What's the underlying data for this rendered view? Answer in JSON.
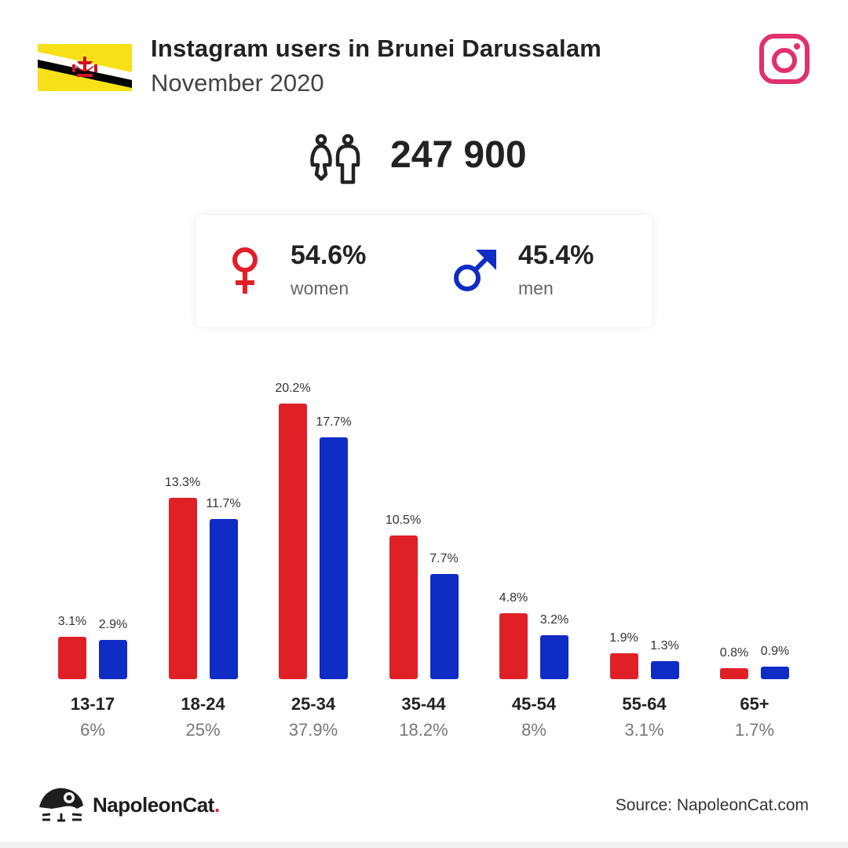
{
  "header": {
    "title": "Instagram users in Brunei Darussalam",
    "subtitle": "November 2020",
    "flag_icon": "brunei-flag",
    "platform_icon": "instagram-icon",
    "platform_color": "#e1306c"
  },
  "total": {
    "icon": "people-icon",
    "value": "247 900"
  },
  "gender": {
    "women": {
      "icon": "female-symbol-icon",
      "percent": "54.6%",
      "label": "women",
      "color": "#e02027"
    },
    "men": {
      "icon": "male-symbol-icon",
      "percent": "45.4%",
      "label": "men",
      "color": "#0f2cc4"
    }
  },
  "chart_data": {
    "type": "bar",
    "title": "Instagram users in Brunei Darussalam by age and gender, November 2020",
    "categories": [
      "13-17",
      "18-24",
      "25-34",
      "35-44",
      "45-54",
      "55-64",
      "65+"
    ],
    "series": [
      {
        "name": "women",
        "color": "#e02027",
        "values": [
          3.1,
          13.3,
          20.2,
          10.5,
          4.8,
          1.9,
          0.8
        ]
      },
      {
        "name": "men",
        "color": "#0f2cc4",
        "values": [
          2.9,
          11.7,
          17.7,
          7.7,
          3.2,
          1.3,
          0.9
        ]
      }
    ],
    "value_labels": {
      "women": [
        "3.1%",
        "13.3%",
        "20.2%",
        "10.5%",
        "4.8%",
        "1.9%",
        "0.8%"
      ],
      "men": [
        "2.9%",
        "11.7%",
        "17.7%",
        "7.7%",
        "3.2%",
        "1.3%",
        "0.9%"
      ]
    },
    "category_totals": [
      "6%",
      "25%",
      "37.9%",
      "18.2%",
      "8%",
      "3.1%",
      "1.7%"
    ],
    "xlabel": "",
    "ylabel": "",
    "grid": false,
    "legend": "none"
  },
  "footer": {
    "brand_name": "NapoleonCat",
    "brand_dot": ".",
    "source": "Source: NapoleonCat.com"
  }
}
